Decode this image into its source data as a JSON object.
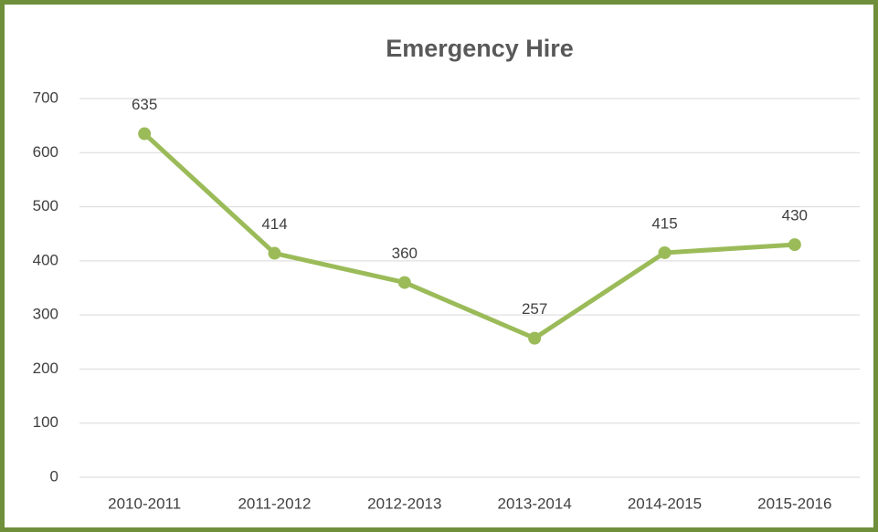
{
  "chart_data": {
    "type": "line",
    "title": "Emergency Hire",
    "categories": [
      "2010-2011",
      "2011-2012",
      "2012-2013",
      "2013-2014",
      "2014-2015",
      "2015-2016"
    ],
    "series": [
      {
        "name": "Emergency Hire",
        "color": "#9bbb59",
        "values": [
          635,
          414,
          360,
          257,
          415,
          430
        ]
      }
    ],
    "ylim": [
      0,
      700
    ],
    "yticks": [
      0,
      100,
      200,
      300,
      400,
      500,
      600,
      700
    ],
    "grid": true,
    "legend": false
  }
}
